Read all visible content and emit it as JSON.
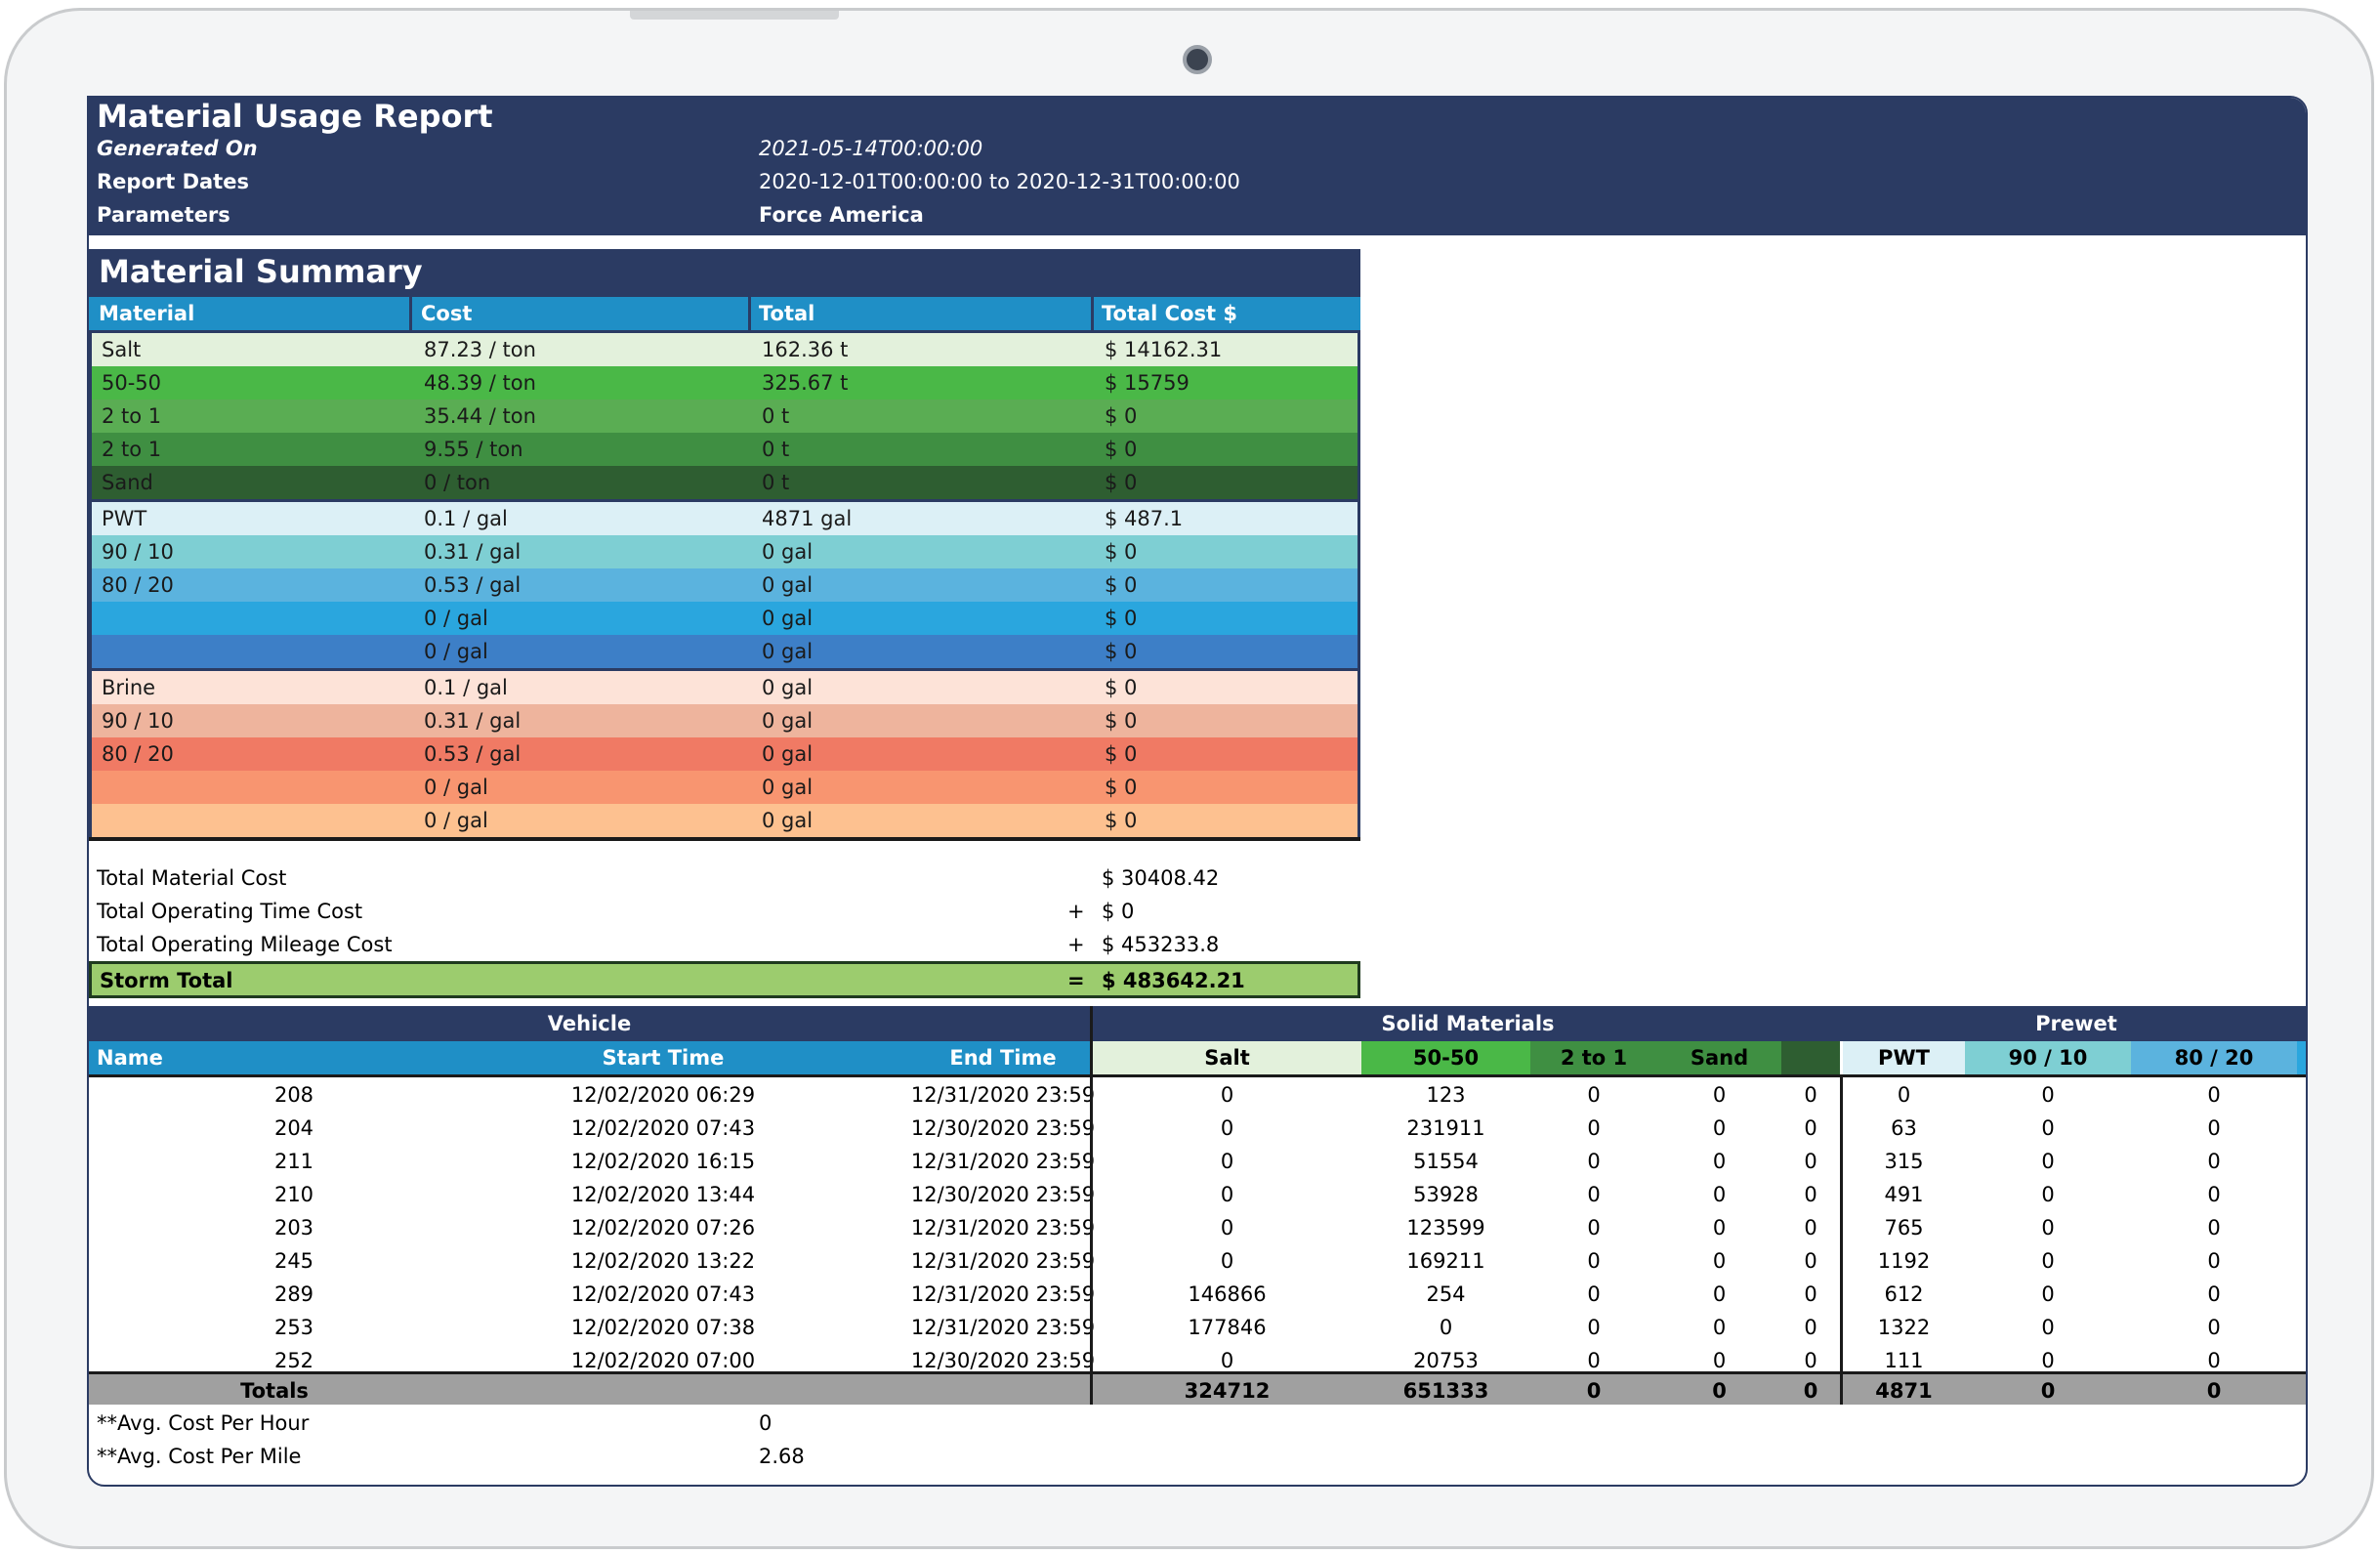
{
  "report": {
    "title": "Material Usage Report",
    "generated_on_label": "Generated On",
    "generated_on_value": "2021-05-14T00:00:00",
    "report_dates_label": "Report Dates",
    "report_dates_value": "2020-12-01T00:00:00 to 2020-12-31T00:00:00",
    "parameters_label": "Parameters",
    "parameters_value": "Force America"
  },
  "summary": {
    "title": "Material Summary",
    "headers": [
      "Material",
      "Cost",
      "Total",
      "Total Cost $"
    ],
    "groups": [
      [
        {
          "material": "Salt",
          "cost": "87.23 / ton",
          "total": "162.36 t",
          "total_cost": "$ 14162.31",
          "bg": "#e3f1dc",
          "fg": "#1a1a1a"
        },
        {
          "material": "50-50",
          "cost": "48.39 / ton",
          "total": "325.67 t",
          "total_cost": "$ 15759",
          "bg": "#4ab847",
          "fg": "#1a1a1a"
        },
        {
          "material": "2 to 1",
          "cost": "35.44 / ton",
          "total": "0 t",
          "total_cost": "$ 0",
          "bg": "#5aad53",
          "fg": "#1a1a1a"
        },
        {
          "material": "2 to 1",
          "cost": "9.55 / ton",
          "total": "0 t",
          "total_cost": "$ 0",
          "bg": "#3f8f42",
          "fg": "#1a1a1a"
        },
        {
          "material": "Sand",
          "cost": "0 / ton",
          "total": "0 t",
          "total_cost": "$ 0",
          "bg": "#2e5e31",
          "fg": "#1a1a1a"
        }
      ],
      [
        {
          "material": "PWT",
          "cost": "0.1 / gal",
          "total": "4871 gal",
          "total_cost": "$ 487.1",
          "bg": "#dcf0f6",
          "fg": "#1a1a1a"
        },
        {
          "material": "90 / 10",
          "cost": "0.31 / gal",
          "total": "0 gal",
          "total_cost": "$ 0",
          "bg": "#7ecfd3",
          "fg": "#1a1a1a"
        },
        {
          "material": "80 / 20",
          "cost": "0.53 / gal",
          "total": "0 gal",
          "total_cost": "$ 0",
          "bg": "#5bb3de",
          "fg": "#1a1a1a"
        },
        {
          "material": "",
          "cost": "0 / gal",
          "total": "0 gal",
          "total_cost": "$ 0",
          "bg": "#2aa6de",
          "fg": "#1a1a1a"
        },
        {
          "material": "",
          "cost": "0 / gal",
          "total": "0 gal",
          "total_cost": "$ 0",
          "bg": "#3d7fc7",
          "fg": "#1a1a1a"
        }
      ],
      [
        {
          "material": "Brine",
          "cost": "0.1 / gal",
          "total": "0 gal",
          "total_cost": "$ 0",
          "bg": "#fde3d8",
          "fg": "#1a1a1a"
        },
        {
          "material": "90 / 10",
          "cost": "0.31 / gal",
          "total": "0 gal",
          "total_cost": "$ 0",
          "bg": "#eeb49d",
          "fg": "#1a1a1a"
        },
        {
          "material": "80 / 20",
          "cost": "0.53 / gal",
          "total": "0 gal",
          "total_cost": "$ 0",
          "bg": "#f07a64",
          "fg": "#1a1a1a"
        },
        {
          "material": "",
          "cost": "0 / gal",
          "total": "0 gal",
          "total_cost": "$ 0",
          "bg": "#f89570",
          "fg": "#1a1a1a"
        },
        {
          "material": "",
          "cost": "0 / gal",
          "total": "0 gal",
          "total_cost": "$ 0",
          "bg": "#fdc190",
          "fg": "#1a1a1a"
        }
      ]
    ]
  },
  "totals": {
    "material_cost_label": "Total Material Cost",
    "material_cost_value": "$ 30408.42",
    "operating_time_label": "Total Operating Time Cost",
    "operating_time_op": "+",
    "operating_time_value": "$ 0",
    "operating_mileage_label": "Total Operating Mileage Cost",
    "operating_mileage_op": "+",
    "operating_mileage_value": "$ 453233.8",
    "storm_total_label": "Storm Total",
    "storm_total_op": "=",
    "storm_total_value": "$ 483642.21"
  },
  "vehicles": {
    "group_vehicle": "Vehicle",
    "group_solid": "Solid Materials",
    "group_prewet": "Prewet",
    "headers": {
      "name": "Name",
      "start": "Start Time",
      "end": "End Time",
      "salt": "Salt",
      "fifty": "50-50",
      "twotoone": "2 to 1",
      "sand": "Sand",
      "pwt": "PWT",
      "ninety": "90 / 10",
      "eighty": "80 / 20"
    },
    "rows": [
      {
        "name": "208",
        "start": "12/02/2020 06:29",
        "end": "12/31/2020 23:59",
        "salt": "0",
        "fifty": "123",
        "twotoone": "0",
        "sand": "0",
        "extra": "0",
        "pwt": "0",
        "ninety": "0",
        "eighty": "0"
      },
      {
        "name": "204",
        "start": "12/02/2020 07:43",
        "end": "12/30/2020 23:59",
        "salt": "0",
        "fifty": "231911",
        "twotoone": "0",
        "sand": "0",
        "extra": "0",
        "pwt": "63",
        "ninety": "0",
        "eighty": "0"
      },
      {
        "name": "211",
        "start": "12/02/2020 16:15",
        "end": "12/31/2020 23:59",
        "salt": "0",
        "fifty": "51554",
        "twotoone": "0",
        "sand": "0",
        "extra": "0",
        "pwt": "315",
        "ninety": "0",
        "eighty": "0"
      },
      {
        "name": "210",
        "start": "12/02/2020 13:44",
        "end": "12/30/2020 23:59",
        "salt": "0",
        "fifty": "53928",
        "twotoone": "0",
        "sand": "0",
        "extra": "0",
        "pwt": "491",
        "ninety": "0",
        "eighty": "0"
      },
      {
        "name": "203",
        "start": "12/02/2020 07:26",
        "end": "12/31/2020 23:59",
        "salt": "0",
        "fifty": "123599",
        "twotoone": "0",
        "sand": "0",
        "extra": "0",
        "pwt": "765",
        "ninety": "0",
        "eighty": "0"
      },
      {
        "name": "245",
        "start": "12/02/2020 13:22",
        "end": "12/31/2020 23:59",
        "salt": "0",
        "fifty": "169211",
        "twotoone": "0",
        "sand": "0",
        "extra": "0",
        "pwt": "1192",
        "ninety": "0",
        "eighty": "0"
      },
      {
        "name": "289",
        "start": "12/02/2020 07:43",
        "end": "12/31/2020 23:59",
        "salt": "146866",
        "fifty": "254",
        "twotoone": "0",
        "sand": "0",
        "extra": "0",
        "pwt": "612",
        "ninety": "0",
        "eighty": "0"
      },
      {
        "name": "253",
        "start": "12/02/2020 07:38",
        "end": "12/31/2020 23:59",
        "salt": "177846",
        "fifty": "0",
        "twotoone": "0",
        "sand": "0",
        "extra": "0",
        "pwt": "1322",
        "ninety": "0",
        "eighty": "0"
      },
      {
        "name": "252",
        "start": "12/02/2020 07:00",
        "end": "12/30/2020 23:59",
        "salt": "0",
        "fifty": "20753",
        "twotoone": "0",
        "sand": "0",
        "extra": "0",
        "pwt": "111",
        "ninety": "0",
        "eighty": "0"
      }
    ],
    "totals": {
      "label": "Totals",
      "salt": "324712",
      "fifty": "651333",
      "twotoone": "0",
      "sand": "0",
      "extra": "0",
      "pwt": "4871",
      "ninety": "0",
      "eighty": "0"
    },
    "avg_hour_label": "**Avg. Cost Per Hour",
    "avg_hour_value": "0",
    "avg_mile_label": "**Avg. Cost Per Mile",
    "avg_mile_value": "2.68"
  },
  "colors": {
    "navy": "#2b3b63",
    "header_blue": "#1f8fc6",
    "salt": "#e3f1dc",
    "fifty": "#4ab847",
    "twotoone": "#3f8f42",
    "sand": "#2e5e31",
    "pwt": "#dcf0f6",
    "ninety": "#7ecfd3",
    "eighty": "#5bb3de",
    "storm": "#9ccc6e",
    "totals_gray": "#a0a0a0"
  }
}
